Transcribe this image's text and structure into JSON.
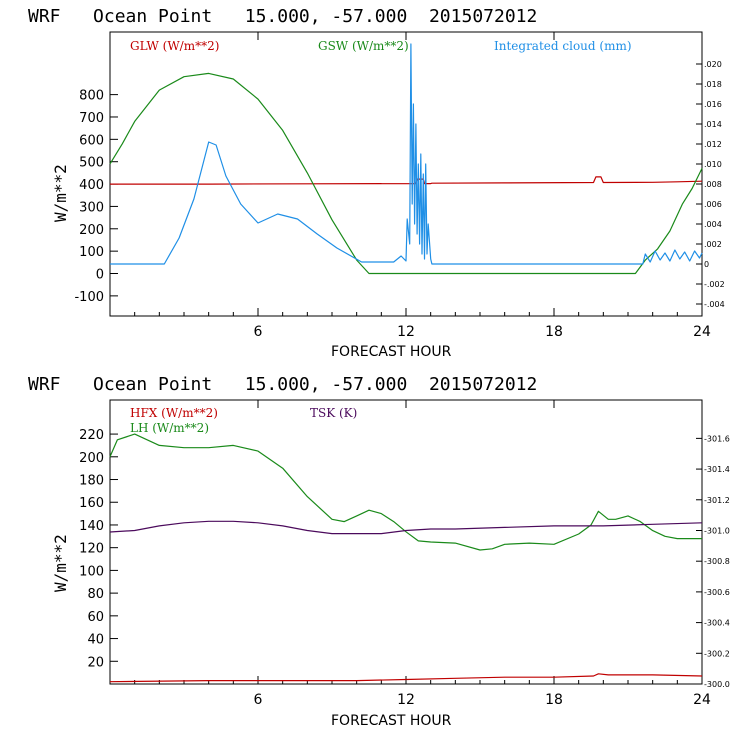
{
  "colors": {
    "axis": "#000000",
    "red": "#c00000",
    "green": "#1a8a1a",
    "blue": "#1f8fe6",
    "purple": "#4b0a5c"
  },
  "chart_data": [
    {
      "type": "line",
      "title": "WRF   Ocean Point   15.000, -57.000  2015072012",
      "xlabel": "FORECAST HOUR",
      "ylabel": "W/m**2",
      "xlim": [
        0,
        24
      ],
      "ylim": [
        -190,
        1080
      ],
      "xticks": [
        6,
        12,
        18,
        24
      ],
      "yticks": [
        -100,
        0,
        100,
        200,
        300,
        400,
        500,
        600,
        700,
        800
      ],
      "right_ylim": [
        -0.0052,
        0.0232
      ],
      "right_yticks": [
        "-.004",
        "-.002",
        "0",
        ".002",
        ".004",
        ".006",
        ".008",
        ".010",
        ".012",
        ".014",
        ".016",
        ".018",
        ".020"
      ],
      "legend": [
        "GLW (W/m**2)",
        "GSW (W/m**2)",
        "Integrated cloud (mm)"
      ],
      "series": [
        {
          "name": "GLW (W/m**2)",
          "color": "red",
          "axis": "left",
          "x": [
            0,
            4,
            8,
            12.4,
            12.45,
            12.7,
            12.75,
            13.0,
            13.05,
            16,
            19.6,
            19.7,
            19.9,
            20,
            22,
            23,
            24
          ],
          "y": [
            400,
            400,
            401,
            402,
            422,
            422,
            402,
            402,
            404,
            405,
            407,
            432,
            432,
            407,
            408,
            410,
            413
          ]
        },
        {
          "name": "GSW (W/m**2)",
          "color": "green",
          "axis": "left",
          "x": [
            0,
            0.5,
            1,
            2,
            3,
            4,
            5,
            6,
            7,
            8,
            9,
            10,
            10.5,
            21.3,
            21.7,
            22.2,
            22.7,
            23.2,
            23.6,
            24
          ],
          "y": [
            490,
            580,
            680,
            820,
            880,
            895,
            870,
            780,
            640,
            450,
            240,
            60,
            0,
            0,
            60,
            110,
            190,
            310,
            380,
            470
          ]
        },
        {
          "name": "Integrated cloud (mm)",
          "color": "blue",
          "axis": "right",
          "x": [
            0,
            2.2,
            2.8,
            3.4,
            4.0,
            4.3,
            4.7,
            5.3,
            6.0,
            6.8,
            7.6,
            8.4,
            9.2,
            10.2,
            11.5,
            11.8,
            12.0,
            12.05,
            12.15,
            12.2,
            12.25,
            12.3,
            12.35,
            12.4,
            12.45,
            12.5,
            12.55,
            12.6,
            12.65,
            12.7,
            12.75,
            12.8,
            12.85,
            12.9,
            13.0,
            13.05,
            21.6,
            21.7,
            21.9,
            22.1,
            22.3,
            22.5,
            22.7,
            22.9,
            23.1,
            23.3,
            23.5,
            23.7,
            23.9,
            24
          ],
          "y": [
            0,
            0,
            0.0026,
            0.0065,
            0.0122,
            0.0119,
            0.0088,
            0.006,
            0.0041,
            0.005,
            0.0045,
            0.003,
            0.0016,
            0.0002,
            0.0002,
            0.0008,
            0.0003,
            0.0045,
            0.002,
            0.022,
            0.006,
            0.016,
            0.004,
            0.014,
            0.003,
            0.01,
            0.002,
            0.011,
            0.001,
            0.009,
            0.0005,
            0.01,
            0.001,
            0.004,
            0.0005,
            0,
            0,
            0.001,
            0.0002,
            0.0013,
            0.0004,
            0.0011,
            0.0003,
            0.0014,
            0.0005,
            0.0012,
            0.0003,
            0.0013,
            0.0006,
            0.0011
          ]
        }
      ]
    },
    {
      "type": "line",
      "title": "WRF   Ocean Point   15.000, -57.000  2015072012",
      "xlabel": "FORECAST HOUR",
      "ylabel": "W/m**2",
      "xlim": [
        0,
        24
      ],
      "ylim": [
        0,
        250
      ],
      "xticks": [
        6,
        12,
        18,
        24
      ],
      "yticks": [
        20,
        40,
        60,
        80,
        100,
        120,
        140,
        160,
        180,
        200,
        220
      ],
      "right_ylim": [
        300.0,
        301.85
      ],
      "right_yticks": [
        "300.0",
        "300.2",
        "300.4",
        "300.6",
        "300.8",
        "301.0",
        "301.2",
        "301.4",
        "301.6"
      ],
      "legend": [
        "HFX (W/m**2)",
        "LH  (W/m**2)",
        "TSK (K)"
      ],
      "series": [
        {
          "name": "HFX (W/m**2)",
          "color": "red",
          "axis": "left",
          "x": [
            0,
            4,
            8,
            10,
            12,
            14,
            16,
            18,
            19.6,
            19.8,
            20.2,
            22,
            24
          ],
          "y": [
            2,
            3,
            3,
            3,
            4,
            5,
            6,
            6,
            7,
            9,
            8,
            8,
            7
          ]
        },
        {
          "name": "LH  (W/m**2)",
          "color": "green",
          "axis": "left",
          "x": [
            0,
            0.3,
            1,
            2,
            3,
            4,
            5,
            6,
            7,
            8,
            9,
            9.5,
            10,
            10.5,
            11,
            11.5,
            12,
            12.5,
            13,
            14,
            15,
            15.5,
            16,
            17,
            18,
            19,
            19.5,
            19.8,
            20.2,
            20.5,
            21,
            21.5,
            22,
            22.5,
            23,
            24
          ],
          "y": [
            200,
            215,
            220,
            210,
            208,
            208,
            210,
            205,
            190,
            165,
            145,
            143,
            148,
            153,
            150,
            143,
            134,
            126,
            125,
            124,
            118,
            119,
            123,
            124,
            123,
            132,
            140,
            152,
            145,
            145,
            148,
            143,
            135,
            130,
            128,
            128
          ]
        },
        {
          "name": "TSK (K)",
          "color": "purple",
          "axis": "right",
          "x": [
            0,
            1,
            2,
            3,
            4,
            5,
            6,
            7,
            8,
            9,
            10,
            11,
            12,
            13,
            14,
            16,
            18,
            20,
            22,
            24
          ],
          "y": [
            300.99,
            301.0,
            301.03,
            301.05,
            301.06,
            301.06,
            301.05,
            301.03,
            301.0,
            300.98,
            300.98,
            300.98,
            301.0,
            301.01,
            301.01,
            301.02,
            301.03,
            301.03,
            301.04,
            301.05
          ]
        }
      ]
    }
  ]
}
